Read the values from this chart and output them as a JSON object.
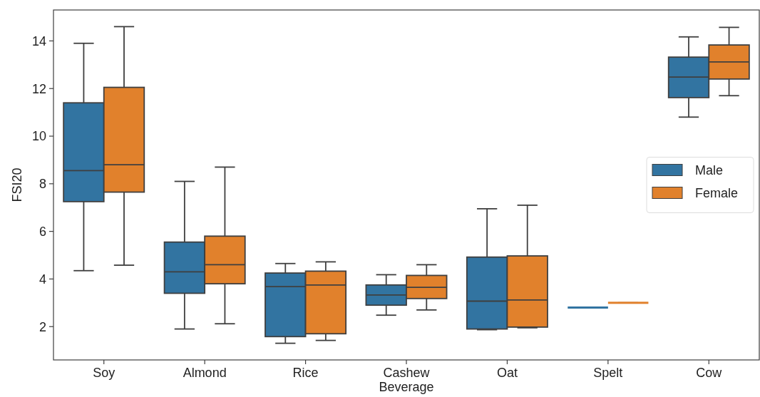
{
  "chart_data": {
    "type": "box",
    "xlabel": "Beverage",
    "ylabel": "FSI20",
    "categories": [
      "Soy",
      "Almond",
      "Rice",
      "Cashew",
      "Oat",
      "Spelt",
      "Cow"
    ],
    "ylim": [
      0.6,
      15.3
    ],
    "yticks": [
      2,
      4,
      6,
      8,
      10,
      12,
      14
    ],
    "grid": false,
    "legend": "right",
    "series": [
      {
        "name": "Male",
        "color": "#3274a1",
        "boxes": [
          {
            "low": 4.35,
            "q1": 7.25,
            "median": 8.55,
            "q3": 11.4,
            "high": 13.9
          },
          {
            "low": 1.9,
            "q1": 3.4,
            "median": 4.3,
            "q3": 5.55,
            "high": 8.1
          },
          {
            "low": 1.3,
            "q1": 1.58,
            "median": 3.68,
            "q3": 4.25,
            "high": 4.65
          },
          {
            "low": 2.48,
            "q1": 2.9,
            "median": 3.33,
            "q3": 3.75,
            "high": 4.18
          },
          {
            "low": 1.87,
            "q1": 1.9,
            "median": 3.07,
            "q3": 4.92,
            "high": 6.95
          },
          {
            "low": 2.8,
            "q1": 2.8,
            "median": 2.8,
            "q3": 2.8,
            "high": 2.8
          },
          {
            "low": 10.8,
            "q1": 11.62,
            "median": 12.48,
            "q3": 13.32,
            "high": 14.17
          }
        ]
      },
      {
        "name": "Female",
        "color": "#e1812c",
        "boxes": [
          {
            "low": 4.58,
            "q1": 7.65,
            "median": 8.8,
            "q3": 12.05,
            "high": 14.6
          },
          {
            "low": 2.12,
            "q1": 3.8,
            "median": 4.6,
            "q3": 5.8,
            "high": 8.7
          },
          {
            "low": 1.42,
            "q1": 1.7,
            "median": 3.75,
            "q3": 4.33,
            "high": 4.72
          },
          {
            "low": 2.7,
            "q1": 3.18,
            "median": 3.65,
            "q3": 4.15,
            "high": 4.6
          },
          {
            "low": 1.95,
            "q1": 1.98,
            "median": 3.12,
            "q3": 4.97,
            "high": 7.1
          },
          {
            "low": 3.0,
            "q1": 3.0,
            "median": 3.0,
            "q3": 3.0,
            "high": 3.0
          },
          {
            "low": 11.7,
            "q1": 12.4,
            "median": 13.12,
            "q3": 13.83,
            "high": 14.57
          }
        ]
      }
    ]
  }
}
